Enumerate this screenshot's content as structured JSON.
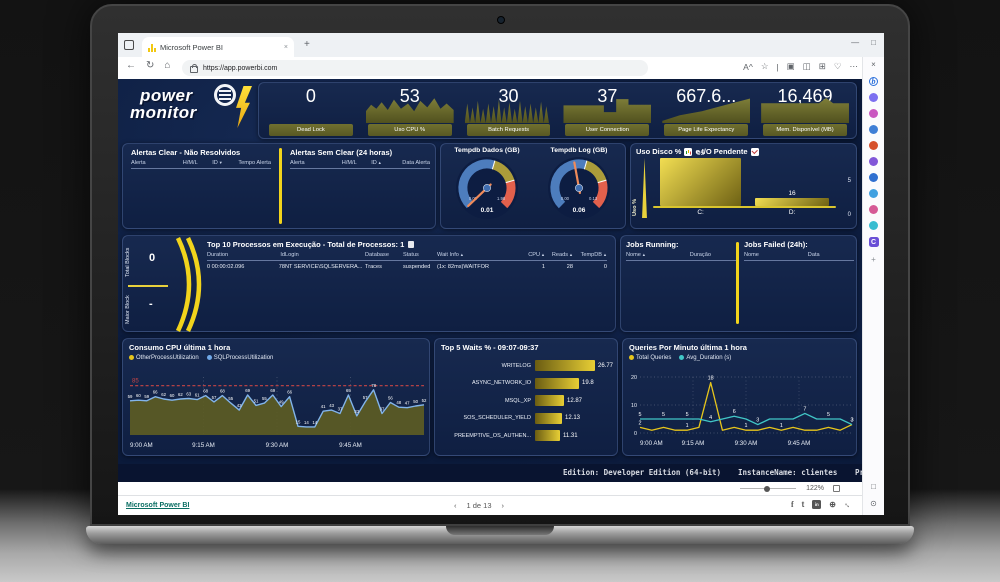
{
  "browser": {
    "tab": {
      "title": "Microsoft Power BI",
      "close_glyph": "×",
      "new_tab_glyph": "+"
    },
    "address": {
      "url": "https://app.powerbi.com"
    },
    "nav_icons": [
      {
        "name": "back-icon",
        "glyph": "←"
      },
      {
        "name": "refresh-icon",
        "glyph": "↻"
      },
      {
        "name": "home-icon",
        "glyph": "⌂"
      }
    ],
    "action_icons": [
      {
        "name": "read-aloud-icon",
        "glyph": "A^"
      },
      {
        "name": "favorite-star-icon",
        "glyph": "☆"
      },
      {
        "name": "separator",
        "glyph": "|"
      },
      {
        "name": "collections-icon",
        "glyph": "▣"
      },
      {
        "name": "split-screen-icon",
        "glyph": "◫"
      },
      {
        "name": "favorites-bar-icon",
        "glyph": "⊞"
      },
      {
        "name": "browser-essentials-icon",
        "glyph": "♡"
      },
      {
        "name": "settings-more-icon",
        "glyph": "⋯"
      }
    ],
    "window_controls": [
      {
        "name": "minimize-icon",
        "glyph": "—"
      },
      {
        "name": "restore-icon",
        "glyph": "□"
      }
    ],
    "sidebar_icons": [
      {
        "name": "sidebar-close-icon",
        "kind": "glyph",
        "glyph": "×",
        "color": "#5f6368"
      },
      {
        "name": "bing-copilot-icon",
        "kind": "ring",
        "glyph": "b",
        "color": "#2a6fdb"
      },
      {
        "name": "notifications-icon",
        "kind": "dot",
        "glyph": "",
        "color": "#7c6ff0"
      },
      {
        "name": "search-icon",
        "kind": "dot",
        "glyph": "",
        "color": "#c957c0"
      },
      {
        "name": "tag-icon",
        "kind": "dot",
        "glyph": "",
        "color": "#3f7fd6"
      },
      {
        "name": "shopping-bag-icon",
        "kind": "dot",
        "glyph": "",
        "color": "#d6502c"
      },
      {
        "name": "people-icon",
        "kind": "dot",
        "glyph": "",
        "color": "#8156d8"
      },
      {
        "name": "edge-tools-icon",
        "kind": "dot",
        "glyph": "",
        "color": "#2f6fd0"
      },
      {
        "name": "camera-icon",
        "kind": "dot",
        "glyph": "",
        "color": "#41a0e0"
      },
      {
        "name": "designer-icon",
        "kind": "dot",
        "glyph": "",
        "color": "#d65a96"
      },
      {
        "name": "drop-icon",
        "kind": "dot",
        "glyph": "",
        "color": "#38bcd0"
      },
      {
        "name": "copilot-c-icon",
        "kind": "sq",
        "glyph": "C",
        "color": "#6a4fd6"
      },
      {
        "name": "add-sidebar-item-icon",
        "kind": "glyph",
        "glyph": "+",
        "color": "#8a8f94"
      }
    ],
    "sidebar_bottom_icons": [
      {
        "name": "sidebar-window-icon",
        "kind": "glyph",
        "glyph": "□",
        "color": "#5f6368"
      },
      {
        "name": "sidebar-settings-icon",
        "kind": "glyph",
        "glyph": "⊙",
        "color": "#5f6368"
      }
    ]
  },
  "report": {
    "logo": {
      "line1": "power",
      "line2": "monitor"
    },
    "kpis": [
      {
        "value": "0",
        "label": "Dead Lock"
      },
      {
        "value": "53",
        "label": "Uso CPU %"
      },
      {
        "value": "30",
        "label": "Batch Requests"
      },
      {
        "value": "37",
        "label": "User Connection"
      },
      {
        "value": "667.6...",
        "label": "Page Life Expectancy"
      },
      {
        "value": "16,469",
        "label": "Mem. Disponível (MB)"
      }
    ],
    "alerts_clear": {
      "title": "Alertas Clear - Não Resolvidos",
      "columns": [
        "Alerta",
        "H/M/L",
        "ID",
        "Tempo Alerta"
      ],
      "sort_col": 2,
      "sort_glyph": "▼"
    },
    "alerts_semclear": {
      "title": "Alertas Sem Clear (24 horas)",
      "columns": [
        "Alerta",
        "H/M/L",
        "ID",
        "Data Alerta"
      ],
      "sort_col": 2,
      "sort_glyph": "▲"
    },
    "gauges": [
      {
        "title": "Tempdb Dados (GB)",
        "min_label": "0.00",
        "max_label": "1.98",
        "value_label": "0.01",
        "min": 0,
        "max": 1.98,
        "value": 0.01
      },
      {
        "title": "Tempdb Log (GB)",
        "min_label": "0.00",
        "max_label": "0.13",
        "value_label": "0.06",
        "min": 0,
        "max": 0.13,
        "value": 0.06
      }
    ],
    "disk": {
      "title": "Uso Disco %",
      "title2": "e I/O Pendente",
      "ylabel": "Uso %",
      "right_ticks": [
        "5",
        "0"
      ]
    },
    "blocks": {
      "total_label": "Total Blocks",
      "total_value": "0",
      "maior_label": "Maior Block",
      "maior_value": "-"
    },
    "process": {
      "title": "Top 10 Processos em Execução - Total de Processos: 1",
      "columns": [
        {
          "label": "Duration",
          "arrow": ""
        },
        {
          "label": "Id",
          "arrow": ""
        },
        {
          "label": "Login",
          "arrow": ""
        },
        {
          "label": "Database",
          "arrow": ""
        },
        {
          "label": "Status",
          "arrow": ""
        },
        {
          "label": "Wait Info",
          "arrow": "▲"
        },
        {
          "label": "CPU",
          "arrow": "▲"
        },
        {
          "label": "Reads",
          "arrow": "▲"
        },
        {
          "label": "TempDB",
          "arrow": "▲"
        }
      ],
      "rows": [
        [
          "0 00:00:02.096",
          "78",
          "NT SERVICE\\SQLSERVERA...",
          "Traces",
          "suspended",
          "(1x: 82ms)WAITFOR",
          "1",
          "28",
          "0"
        ]
      ]
    },
    "jobs_running": {
      "title": "Jobs Running:",
      "columns": [
        "Nome",
        "Duração"
      ],
      "sort_glyph": "▲"
    },
    "jobs_failed": {
      "title": "Jobs Failed (24h):",
      "columns": [
        "Nome",
        "Data"
      ]
    },
    "status_bar": {
      "edition": "Edition: Developer Edition (64-bit)",
      "instance": "InstanceName: clientes",
      "truncated": "Pr"
    }
  },
  "chart_data": [
    {
      "id": "cpu",
      "type": "area",
      "title": "Consumo CPU última 1 hora",
      "legend": [
        {
          "name": "OtherProcessUtilization",
          "color": "#e6c51c"
        },
        {
          "name": "SQLProcessUtilization",
          "color": "#6fa8e8"
        }
      ],
      "threshold": 85,
      "ylim": [
        0,
        100
      ],
      "x_ticks": [
        "9:00 AM",
        "9:15 AM",
        "9:30 AM",
        "9:45 AM"
      ],
      "values": [
        59,
        60,
        59,
        66,
        62,
        60,
        62,
        63,
        61,
        68,
        57,
        68,
        55,
        43,
        69,
        51,
        55,
        69,
        49,
        66,
        15,
        14,
        14,
        41,
        43,
        37,
        69,
        33,
        57,
        78,
        37,
        56,
        48,
        47,
        50,
        52
      ]
    },
    {
      "id": "waits",
      "type": "bar",
      "title": "Top 5 Waits % - 09:07-09:37",
      "categories": [
        "WRITELOG",
        "ASYNC_NETWORK_IO",
        "MSQL_XP",
        "SOS_SCHEDULER_YIELD",
        "PREEMPTIVE_OS_AUTHEN..."
      ],
      "values": [
        26.77,
        19.8,
        12.87,
        12.13,
        11.31
      ],
      "value_labels": [
        "26.77",
        "19.8",
        "12.87",
        "12.13",
        "11.31"
      ]
    },
    {
      "id": "queries",
      "type": "line",
      "title": "Queries Por Minuto última 1 hora",
      "legend": [
        {
          "name": "Total Queries",
          "color": "#e6c51c"
        },
        {
          "name": "Avg_Duration (s)",
          "color": "#41c7c7"
        }
      ],
      "ylim": [
        0,
        20
      ],
      "y_ticks": [
        "0",
        "10",
        "20"
      ],
      "x_ticks": [
        "9:00 AM",
        "9:15 AM",
        "9:30 AM",
        "9:45 AM"
      ],
      "series": [
        {
          "name": "Total Queries",
          "color": "#e6c51c",
          "values": [
            2,
            1,
            2,
            1,
            1,
            2,
            18,
            1,
            2,
            1,
            1,
            2,
            1,
            2,
            1,
            1,
            2,
            1,
            3
          ],
          "labels": {
            "0": "2",
            "4": "1",
            "6": "18",
            "9": "1",
            "12": "1",
            "18": "3"
          }
        },
        {
          "name": "Avg_Duration (s)",
          "color": "#41c7c7",
          "values": [
            5,
            5,
            5,
            5,
            5,
            5,
            4,
            5,
            6,
            5,
            3,
            5,
            5,
            5,
            7,
            5,
            5,
            5,
            3
          ],
          "labels": {
            "0": "5",
            "2": "5",
            "4": "5",
            "6": "4",
            "8": "6",
            "10": "3",
            "14": "7",
            "16": "5",
            "18": "3"
          }
        }
      ]
    },
    {
      "id": "disk",
      "type": "bar",
      "title": "Uso Disco % e I/O Pendente",
      "categories": [
        "C:",
        "D:"
      ],
      "values": [
        95,
        16
      ],
      "secondary_axis": [
        5,
        0
      ],
      "io_pendente": 0
    }
  ],
  "footer": {
    "brand": "Microsoft Power BI",
    "prev": "‹",
    "page": "1 de 13",
    "next": "›",
    "zoom": "122%"
  }
}
